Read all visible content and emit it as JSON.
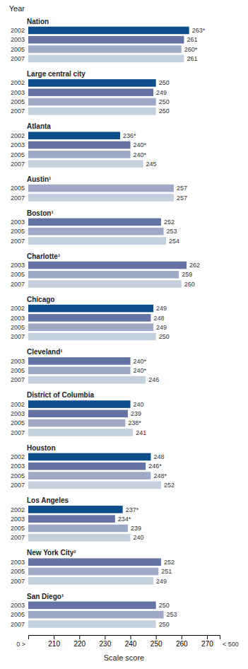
{
  "chart_data": {
    "type": "bar",
    "orientation": "horizontal",
    "title": "Year",
    "xlabel": "Scale score",
    "xlim": [
      200,
      275
    ],
    "xticks": [
      210,
      220,
      230,
      240,
      250,
      260,
      270
    ],
    "grid": false,
    "data_labels": true,
    "annotations": [
      "0 >",
      "< 500"
    ],
    "groups": [
      {
        "label": "Nation",
        "categories": [
          "2002",
          "2003",
          "2005",
          "2007"
        ],
        "values": [
          263,
          261,
          260,
          261
        ],
        "value_labels": [
          "263*",
          "261",
          "260*",
          "261"
        ],
        "colors": [
          "#0d4e8a",
          "#6473a3",
          "#9fa8c5",
          "#c5d0de"
        ]
      },
      {
        "label": "Large central city",
        "categories": [
          "2002",
          "2003",
          "2005",
          "2007"
        ],
        "values": [
          250,
          249,
          250,
          250
        ],
        "value_labels": [
          "250",
          "249",
          "250",
          "250"
        ],
        "colors": [
          "#0d4e8a",
          "#6473a3",
          "#9fa8c5",
          "#c5d0de"
        ]
      },
      {
        "label": "Atlanta",
        "categories": [
          "2002",
          "2003",
          "2005",
          "2007"
        ],
        "values": [
          236,
          240,
          240,
          245
        ],
        "value_labels": [
          "236*",
          "240*",
          "240*",
          "245"
        ],
        "colors": [
          "#0d4e8a",
          "#6473a3",
          "#9fa8c5",
          "#c5d0de"
        ]
      },
      {
        "label": "Austin¹",
        "categories": [
          "2005",
          "2007"
        ],
        "values": [
          257,
          257
        ],
        "value_labels": [
          "257",
          "257"
        ],
        "colors": [
          "#9fa8c5",
          "#c5d0de"
        ]
      },
      {
        "label": "Boston¹",
        "categories": [
          "2003",
          "2005",
          "2007"
        ],
        "values": [
          252,
          253,
          254
        ],
        "value_labels": [
          "252",
          "253",
          "254"
        ],
        "colors": [
          "#6473a3",
          "#9fa8c5",
          "#c5d0de"
        ]
      },
      {
        "label": "Charlotte¹",
        "categories": [
          "2003",
          "2005",
          "2007"
        ],
        "values": [
          262,
          259,
          260
        ],
        "value_labels": [
          "262",
          "259",
          "260"
        ],
        "colors": [
          "#6473a3",
          "#9fa8c5",
          "#c5d0de"
        ]
      },
      {
        "label": "Chicago",
        "categories": [
          "2002",
          "2003",
          "2005",
          "2007"
        ],
        "values": [
          249,
          248,
          249,
          250
        ],
        "value_labels": [
          "249",
          "248",
          "249",
          "250"
        ],
        "colors": [
          "#0d4e8a",
          "#6473a3",
          "#9fa8c5",
          "#c5d0de"
        ]
      },
      {
        "label": "Cleveland¹",
        "categories": [
          "2003",
          "2005",
          "2007"
        ],
        "values": [
          240,
          240,
          246
        ],
        "value_labels": [
          "240*",
          "240*",
          "246"
        ],
        "colors": [
          "#6473a3",
          "#9fa8c5",
          "#c5d0de"
        ]
      },
      {
        "label": "District of Columbia",
        "categories": [
          "2002",
          "2003",
          "2005",
          "2007"
        ],
        "values": [
          240,
          239,
          238,
          241
        ],
        "value_labels": [
          "240",
          "239",
          "238*",
          "241"
        ],
        "colors": [
          "#0d4e8a",
          "#6473a3",
          "#9fa8c5",
          "#c5d0de"
        ]
      },
      {
        "label": "Houston",
        "categories": [
          "2002",
          "2003",
          "2005",
          "2007"
        ],
        "values": [
          248,
          246,
          248,
          252
        ],
        "value_labels": [
          "248",
          "246*",
          "248*",
          "252"
        ],
        "colors": [
          "#0d4e8a",
          "#6473a3",
          "#9fa8c5",
          "#c5d0de"
        ]
      },
      {
        "label": "Los Angeles",
        "categories": [
          "2002",
          "2003",
          "2005",
          "2007"
        ],
        "values": [
          237,
          234,
          239,
          240
        ],
        "value_labels": [
          "237*",
          "234*",
          "239",
          "240"
        ],
        "colors": [
          "#0d4e8a",
          "#6473a3",
          "#9fa8c5",
          "#c5d0de"
        ]
      },
      {
        "label": "New York City²",
        "categories": [
          "2003",
          "2005",
          "2007"
        ],
        "values": [
          252,
          251,
          249
        ],
        "value_labels": [
          "252",
          "251",
          "249"
        ],
        "colors": [
          "#6473a3",
          "#9fa8c5",
          "#c5d0de"
        ]
      },
      {
        "label": "San Diego¹",
        "categories": [
          "2003",
          "2005",
          "2007"
        ],
        "values": [
          250,
          253,
          250
        ],
        "value_labels": [
          "250",
          "253",
          "250"
        ],
        "colors": [
          "#6473a3",
          "#9fa8c5",
          "#c5d0de"
        ]
      }
    ]
  }
}
